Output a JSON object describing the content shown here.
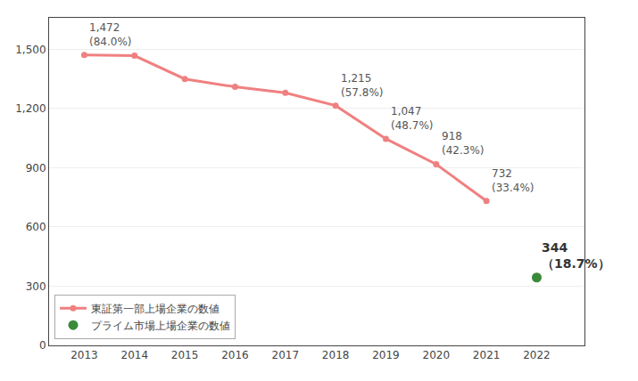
{
  "chart_data": {
    "type": "line",
    "x": [
      2013,
      2014,
      2015,
      2016,
      2017,
      2018,
      2019,
      2020,
      2021,
      2022
    ],
    "series": [
      {
        "name": "東証第一部上場企業の数値",
        "type": "line",
        "color": "#F08080",
        "marker": "circle",
        "values": [
          1472,
          1468,
          1350,
          1310,
          1280,
          1215,
          1047,
          918,
          732,
          null
        ]
      },
      {
        "name": "プライム市場上場企業の数値",
        "type": "scatter",
        "color": "#3a8a3a",
        "marker": "circle",
        "values": [
          null,
          null,
          null,
          null,
          null,
          null,
          null,
          null,
          null,
          344
        ]
      }
    ],
    "annotations": [
      {
        "x": 2013,
        "y": 1472,
        "text": "1,472"
      },
      {
        "x": 2013,
        "y": 1472,
        "text": "(84.0%)"
      },
      {
        "x": 2018,
        "y": 1215,
        "text": "1,215"
      },
      {
        "x": 2018,
        "y": 1215,
        "text": "(57.8%)"
      },
      {
        "x": 2019,
        "y": 1047,
        "text": "1,047"
      },
      {
        "x": 2019,
        "y": 1047,
        "text": "(48.7%)"
      },
      {
        "x": 2020,
        "y": 918,
        "text": "918"
      },
      {
        "x": 2020,
        "y": 918,
        "text": "(42.3%)"
      },
      {
        "x": 2021,
        "y": 732,
        "text": "732"
      },
      {
        "x": 2021,
        "y": 732,
        "text": "(33.4%)"
      },
      {
        "x": 2022,
        "y": 344,
        "text": "344"
      },
      {
        "x": 2022,
        "y": 344,
        "text": "（18.7%）"
      }
    ],
    "xlim": [
      2012.3,
      2022.95
    ],
    "xticks": [
      2013,
      2014,
      2015,
      2016,
      2017,
      2018,
      2019,
      2020,
      2021,
      2022
    ],
    "ylim": [
      0,
      1660
    ],
    "yticks": [
      0,
      300,
      600,
      900,
      {
        "value": 1200,
        "label": "1,200"
      },
      {
        "value": 1500,
        "label": "1,500"
      }
    ],
    "grid": true,
    "legend": "lower left"
  }
}
